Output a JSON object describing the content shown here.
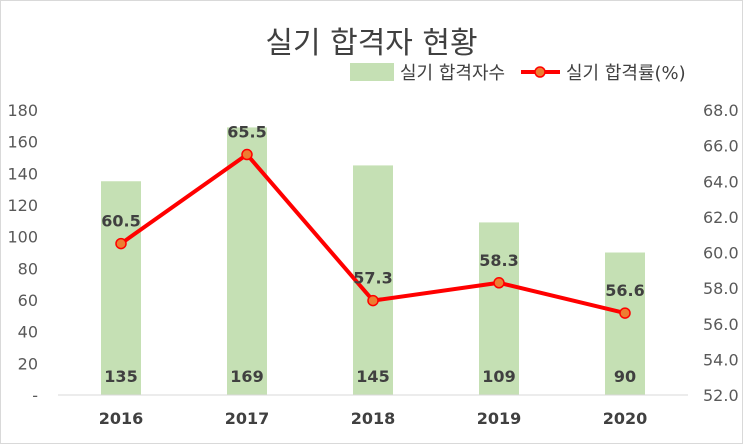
{
  "chart_data": {
    "type": "bar+line",
    "title": "실기 합격자 현황",
    "categories": [
      "2016",
      "2017",
      "2018",
      "2019",
      "2020"
    ],
    "series": [
      {
        "name": "실기 합격자수",
        "type": "bar",
        "axis": "left",
        "color": "#c5e0b4",
        "values": [
          135,
          169,
          145,
          109,
          90
        ]
      },
      {
        "name": "실기 합격률(%)",
        "type": "line",
        "axis": "right",
        "color": "#ff0000",
        "marker_color": "#ed7d31",
        "values": [
          60.5,
          65.5,
          57.3,
          58.3,
          56.6
        ]
      }
    ],
    "y_left": {
      "range": [
        0,
        180
      ],
      "ticks": [
        "-",
        "20",
        "40",
        "60",
        "80",
        "100",
        "120",
        "140",
        "160",
        "180"
      ]
    },
    "y_right": {
      "range": [
        52,
        68
      ],
      "ticks": [
        "52.0",
        "54.0",
        "56.0",
        "58.0",
        "60.0",
        "62.0",
        "64.0",
        "66.0",
        "68.0"
      ]
    },
    "grid": false,
    "legend_position": "top-right"
  }
}
